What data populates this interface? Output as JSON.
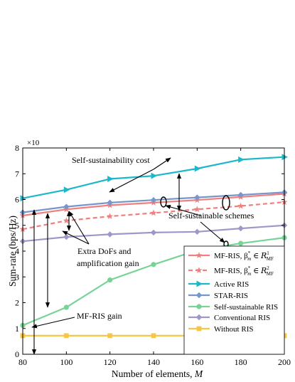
{
  "chart_data": {
    "type": "line",
    "xlabel": "Number of elements, M",
    "ylabel": "Sum-rate (bps/Hz)",
    "y_multiplier": "×10",
    "xlim": [
      80,
      200
    ],
    "ylim": [
      0,
      8
    ],
    "xticks": [
      80,
      100,
      120,
      140,
      160,
      180,
      200
    ],
    "yticks": [
      0,
      1,
      2,
      3,
      4,
      5,
      6,
      7,
      8
    ],
    "x": [
      80,
      100,
      120,
      140,
      160,
      180,
      200
    ],
    "series": [
      {
        "name": "MF-RIS, β*m ∈ R1MF",
        "legend_main": "MF-RIS, β",
        "legend_sup": "*",
        "legend_sub": "m",
        "legend_tail": " ∈ ",
        "legend_set": "R",
        "legend_set_sup": "1",
        "legend_set_sub": "MF",
        "color": "#f07f80",
        "dash": false,
        "marker": "star",
        "values": [
          5.38,
          5.62,
          5.78,
          5.88,
          5.98,
          6.1,
          6.22
        ]
      },
      {
        "name": "MF-RIS, β*m ∈ R2MF",
        "legend_main": "MF-RIS, β",
        "legend_sup": "*",
        "legend_sub": "m",
        "legend_tail": " ∈ ",
        "legend_set": "R",
        "legend_set_sup": "2",
        "legend_set_sub": "MF",
        "color": "#f07f80",
        "dash": true,
        "marker": "star",
        "values": [
          4.85,
          5.18,
          5.35,
          5.48,
          5.62,
          5.75,
          5.9
        ]
      },
      {
        "name": "Active RIS",
        "color": "#1cb8c8",
        "dash": false,
        "marker": "triangle-right",
        "values": [
          6.05,
          6.38,
          6.8,
          6.92,
          7.2,
          7.55,
          7.65
        ]
      },
      {
        "name": "STAR-RIS",
        "color": "#7696cc",
        "dash": false,
        "marker": "diamond",
        "values": [
          5.5,
          5.72,
          5.88,
          5.98,
          6.08,
          6.18,
          6.28
        ]
      },
      {
        "name": "Self-sustainable RIS",
        "color": "#78d496",
        "dash": false,
        "marker": "circle",
        "values": [
          1.12,
          1.82,
          2.88,
          3.48,
          4.03,
          4.3,
          4.52
        ]
      },
      {
        "name": "Conventional RIS",
        "color": "#9f98c7",
        "dash": false,
        "marker": "diamond",
        "values": [
          4.38,
          4.55,
          4.65,
          4.72,
          4.75,
          4.88,
          5.0
        ]
      },
      {
        "name": "Without RIS",
        "color": "#f4c64a",
        "dash": false,
        "marker": "square",
        "values": [
          0.72,
          0.72,
          0.72,
          0.72,
          0.72,
          0.72,
          0.72
        ]
      }
    ],
    "annotations": [
      {
        "text": "Self-sustainability cost"
      },
      {
        "text": "Self-sustainable schemes"
      },
      {
        "text": "Extra DoFs and"
      },
      {
        "text": "amplification gain"
      },
      {
        "text": "MF-RIS gain"
      }
    ],
    "legend_position": "bottom-right"
  }
}
